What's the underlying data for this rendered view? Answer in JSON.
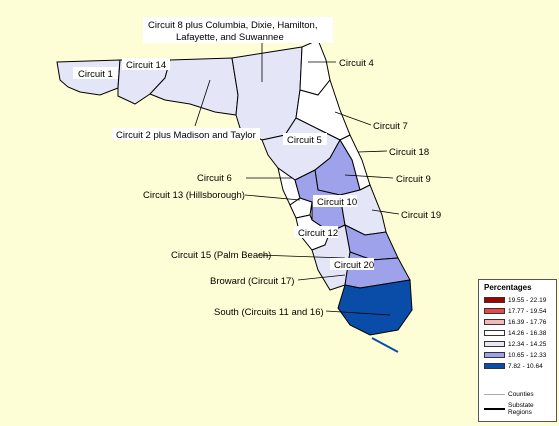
{
  "legend": {
    "title": "Percentages",
    "ranges": [
      {
        "label": "19.55 - 22.19",
        "color": "#a50000"
      },
      {
        "label": "17.77 - 19.54",
        "color": "#e84848"
      },
      {
        "label": "16.39 - 17.76",
        "color": "#f4b8b8"
      },
      {
        "label": "14.26 - 16.38",
        "color": "#ffffff"
      },
      {
        "label": "12.34 - 14.25",
        "color": "#e4e5f6"
      },
      {
        "label": "10.65 - 12.33",
        "color": "#9da2ea"
      },
      {
        "label": "7.82 - 10.64",
        "color": "#0a4da8"
      }
    ],
    "counties_label": "Counties",
    "substate_label_1": "Substate",
    "substate_label_2": "Regions"
  },
  "labels": {
    "circuit1": "Circuit 1",
    "circuit14": "Circuit 14",
    "circuit8_line1": "Circuit 8 plus Columbia, Dixie, Hamilton,",
    "circuit8_line2": "Lafayette, and Suwannee",
    "circuit4": "Circuit 4",
    "circuit2": "Circuit 2 plus Madison and Taylor",
    "circuit7": "Circuit 7",
    "circuit5": "Circuit 5",
    "circuit18": "Circuit 18",
    "circuit6": "Circuit 6",
    "circuit9": "Circuit 9",
    "circuit13": "Circuit 13 (Hillsborough)",
    "circuit10": "Circuit 10",
    "circuit19": "Circuit 19",
    "circuit12": "Circuit 12",
    "circuit15": "Circuit 15 (Palm Beach)",
    "circuit20": "Circuit 20",
    "circuit17": "Broward (Circuit 17)",
    "circuit1116": "South (Circuits 11 and 16)"
  },
  "colors": {
    "background": "#fefed6",
    "light": "#e4e5f6",
    "medium": "#9da2ea",
    "dark": "#0a4da8",
    "white": "#ffffff"
  }
}
